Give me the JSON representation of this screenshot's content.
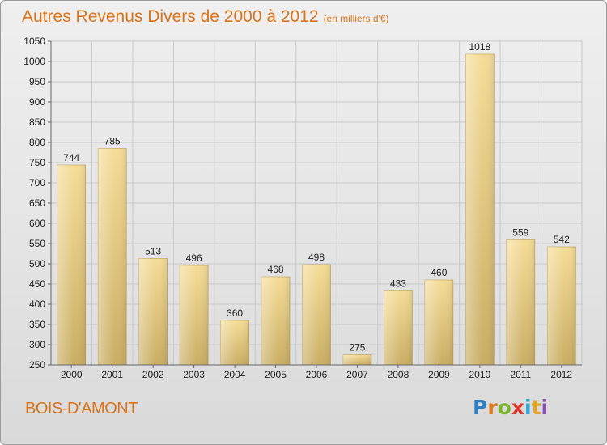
{
  "title": "Autres Revenus Divers de 2000 à 2012",
  "subtitle": "(en milliers d'€)",
  "place": "BOIS-D'AMONT",
  "logo": {
    "letters": [
      "P",
      "r",
      "o",
      "x",
      "i",
      "t",
      "i"
    ],
    "colors": [
      "#2f7fc1",
      "#e07a1c",
      "#7ab52a",
      "#d93a2b",
      "#2fa8d8",
      "#e5a21b",
      "#8a4fb3"
    ]
  },
  "chart_data": {
    "type": "bar",
    "categories": [
      "2000",
      "2001",
      "2002",
      "2003",
      "2004",
      "2005",
      "2006",
      "2007",
      "2008",
      "2009",
      "2010",
      "2011",
      "2012"
    ],
    "values": [
      744,
      785,
      513,
      496,
      360,
      468,
      498,
      275,
      433,
      460,
      1018,
      559,
      542
    ],
    "ylim": [
      250,
      1050
    ],
    "yticks": [
      250,
      300,
      350,
      400,
      450,
      500,
      550,
      600,
      650,
      700,
      750,
      800,
      850,
      900,
      950,
      1000,
      1050
    ],
    "grid": true,
    "colors": {
      "bar_light": "#f5dc97",
      "bar_dark": "#c9ad63",
      "grid": "#c8c8c8",
      "text": "#222222"
    }
  }
}
